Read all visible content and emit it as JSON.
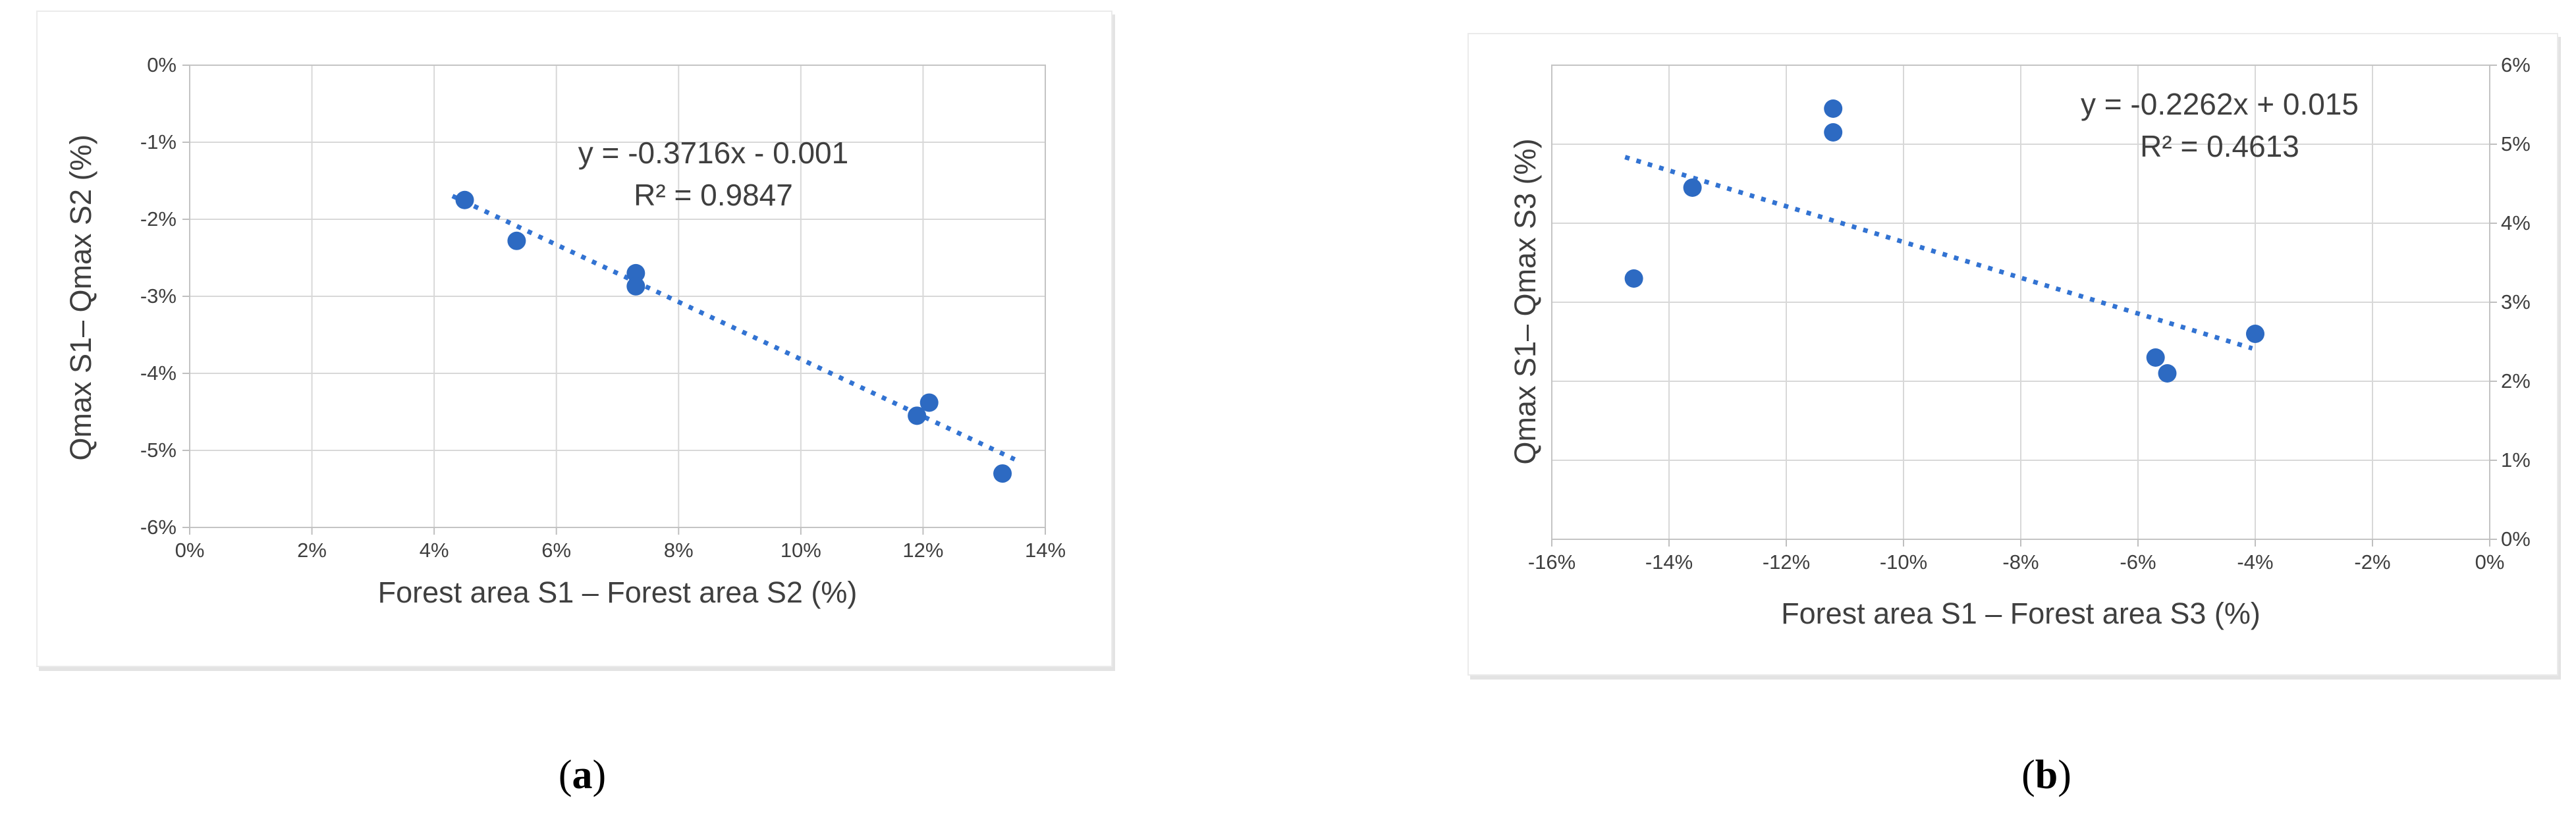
{
  "figure": {
    "captions": [
      {
        "open": "(",
        "letter": "a",
        "close": ")"
      },
      {
        "open": "(",
        "letter": "b",
        "close": ")"
      }
    ]
  },
  "colors": {
    "point": "#2d6ac2",
    "trendline": "#3273d2",
    "gridline": "#d8d8d8",
    "plot_border": "#c4c4c4",
    "tick_mark": "#bfbfbf",
    "text": "#3f3f3f"
  },
  "chart_data": [
    {
      "id": "a",
      "type": "scatter",
      "title": "",
      "xlabel": "Forest area S1 – Forest area S2 (%)",
      "ylabel": "Qmax S1– Qmax S2 (%)",
      "equation": "y = -0.3716x - 0.001",
      "r_squared": "R² = 0.9847",
      "xlim": [
        0,
        14
      ],
      "ylim": [
        -6,
        0
      ],
      "xticks": [
        "0%",
        "2%",
        "4%",
        "6%",
        "8%",
        "10%",
        "12%",
        "14%"
      ],
      "yticks": [
        "0%",
        "-1%",
        "-2%",
        "-3%",
        "-4%",
        "-5%",
        "-6%"
      ],
      "grid": true,
      "legend": "none",
      "points": [
        [
          4.5,
          -1.75
        ],
        [
          5.35,
          -2.28
        ],
        [
          7.3,
          -2.7
        ],
        [
          7.3,
          -2.87
        ],
        [
          11.9,
          -4.55
        ],
        [
          12.1,
          -4.38
        ],
        [
          13.3,
          -5.3
        ]
      ],
      "trendline": {
        "slope": -0.3716,
        "intercept_pct": -0.1,
        "x_start": 4.3,
        "x_end": 13.5,
        "style": "dotted"
      }
    },
    {
      "id": "b",
      "type": "scatter",
      "title": "",
      "xlabel": "Forest area S1 – Forest area S3 (%)",
      "ylabel": "Qmax S1– Qmax S3 (%)",
      "equation": "y = -0.2262x + 0.015",
      "r_squared": "R² = 0.4613",
      "xlim": [
        -16,
        0
      ],
      "ylim": [
        0,
        6
      ],
      "xticks": [
        "-16%",
        "-14%",
        "-12%",
        "-10%",
        "-8%",
        "-6%",
        "-4%",
        "-2%",
        "0%"
      ],
      "yticks": [
        "6%",
        "5%",
        "4%",
        "3%",
        "2%",
        "1%",
        "0%"
      ],
      "grid": true,
      "legend": "none",
      "points": [
        [
          -14.6,
          3.3
        ],
        [
          -13.6,
          4.45
        ],
        [
          -11.2,
          5.45
        ],
        [
          -11.2,
          5.15
        ],
        [
          -5.7,
          2.3
        ],
        [
          -5.5,
          2.1
        ],
        [
          -4.0,
          2.6
        ]
      ],
      "trendline": {
        "slope": -0.2262,
        "intercept_pct": 1.5,
        "x_start": -14.75,
        "x_end": -4.05,
        "style": "dotted"
      }
    }
  ]
}
